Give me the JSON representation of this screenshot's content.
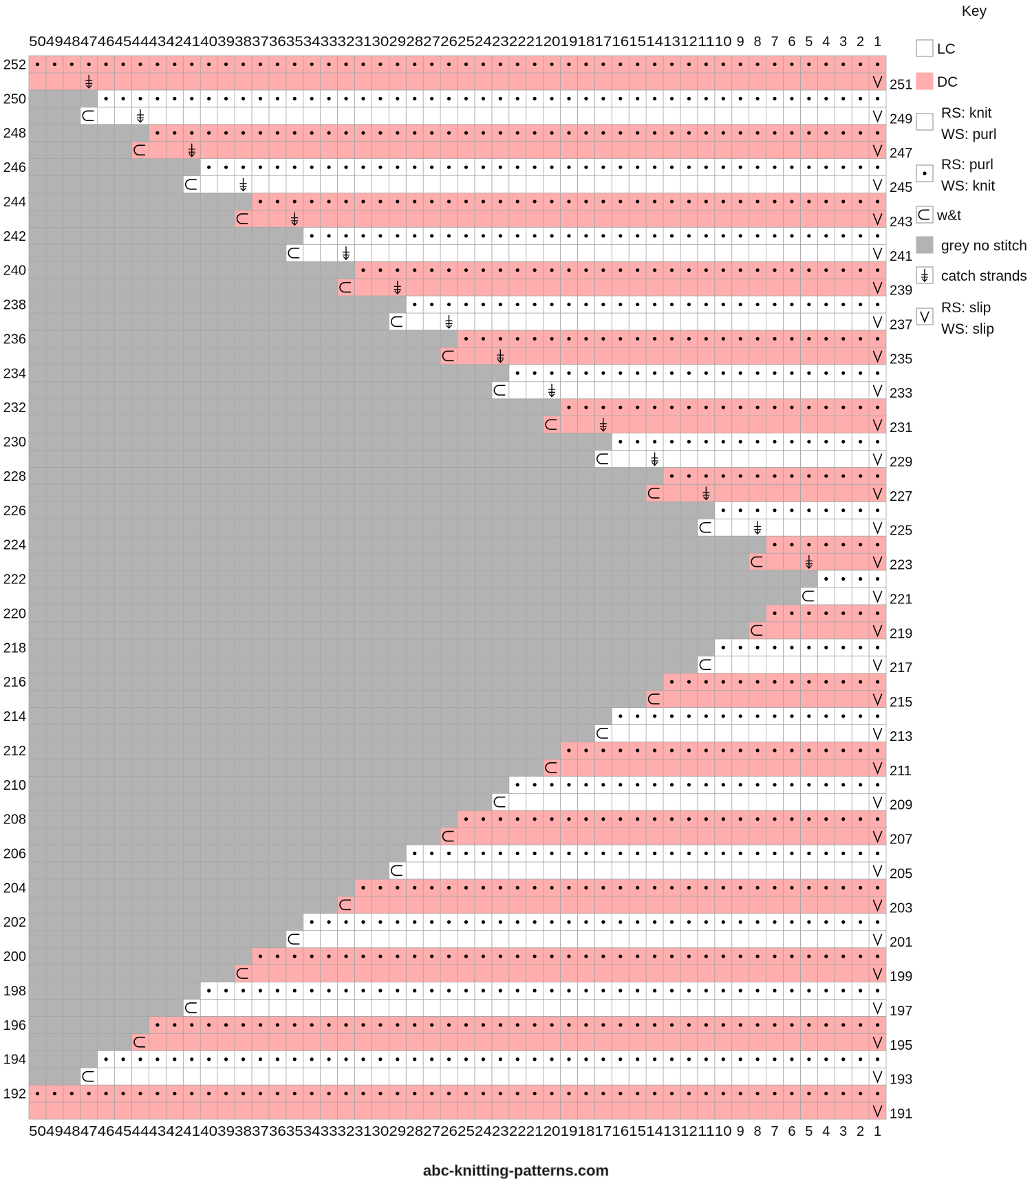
{
  "key": {
    "title": "Key",
    "items": [
      {
        "symbol": "lc",
        "lines": [
          "LC"
        ]
      },
      {
        "symbol": "dc",
        "lines": [
          "DC"
        ]
      },
      {
        "symbol": "knit",
        "lines": [
          "RS: knit",
          "WS: purl"
        ]
      },
      {
        "symbol": "purl",
        "lines": [
          "RS: purl",
          "WS: knit"
        ]
      },
      {
        "symbol": "wt",
        "lines": [
          "w&t"
        ]
      },
      {
        "symbol": "grey",
        "lines": [
          "grey no stitch"
        ]
      },
      {
        "symbol": "catch",
        "lines": [
          "catch strands"
        ]
      },
      {
        "symbol": "slip",
        "lines": [
          "RS: slip",
          "WS: slip"
        ]
      }
    ]
  },
  "chart": {
    "columns": 50,
    "first_row": 191,
    "last_row": 252,
    "colors": {
      "dc": "#ffadad",
      "lc": "#ffffff",
      "grey": "#b3b3b3",
      "grid": "#a6a6a6"
    },
    "row_edge": {
      "191": 0,
      "192": 0,
      "193": 47,
      "194": 46,
      "195": 44,
      "196": 43,
      "197": 41,
      "198": 40,
      "199": 38,
      "200": 37,
      "201": 35,
      "202": 34,
      "203": 32,
      "204": 31,
      "205": 29,
      "206": 28,
      "207": 26,
      "208": 25,
      "209": 23,
      "210": 22,
      "211": 20,
      "212": 19,
      "213": 17,
      "214": 16,
      "215": 14,
      "216": 13,
      "217": 11,
      "218": 10,
      "219": 8,
      "220": 7,
      "221": 5,
      "222": 4,
      "223": 8,
      "224": 7,
      "225": 11,
      "226": 10,
      "227": 14,
      "228": 13,
      "229": 17,
      "230": 16,
      "231": 20,
      "232": 19,
      "233": 23,
      "234": 22,
      "235": 26,
      "236": 25,
      "237": 29,
      "238": 28,
      "239": 32,
      "240": 31,
      "241": 35,
      "242": 34,
      "243": 38,
      "244": 37,
      "245": 41,
      "246": 40,
      "247": 44,
      "248": 43,
      "249": 47,
      "250": 46,
      "251": 0,
      "252": 0
    },
    "catch_strands": {
      "223": 5,
      "225": 8,
      "227": 11,
      "229": 14,
      "231": 17,
      "233": 20,
      "235": 23,
      "237": 26,
      "239": 29,
      "241": 32,
      "243": 35,
      "245": 38,
      "247": 41,
      "249": 44,
      "251": 47
    }
  },
  "footer": "abc-knitting-patterns.com"
}
